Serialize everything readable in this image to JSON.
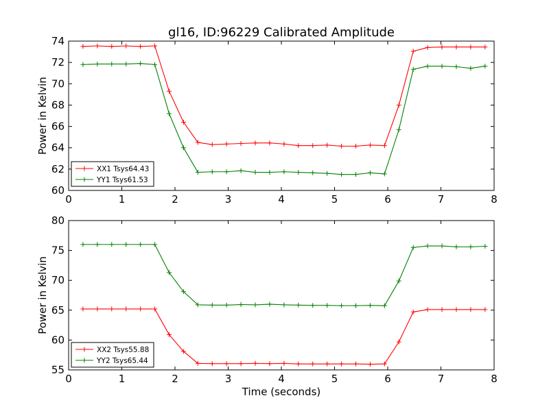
{
  "chart_data": [
    {
      "type": "line",
      "title": "gl16, ID:96229 Calibrated Amplitude",
      "xlabel": "",
      "ylabel": "Power in Kelvin",
      "xlim": [
        0,
        8
      ],
      "ylim": [
        60,
        74
      ],
      "xticks": [
        0,
        1,
        2,
        3,
        4,
        5,
        6,
        7,
        8
      ],
      "yticks": [
        60,
        62,
        64,
        66,
        68,
        70,
        72,
        74
      ],
      "xtick_labels": [
        "0",
        "1",
        "2",
        "3",
        "4",
        "5",
        "6",
        "7",
        "8"
      ],
      "ytick_labels": [
        "60",
        "62",
        "64",
        "66",
        "68",
        "70",
        "72",
        "74"
      ],
      "legend_position": "bottom-left",
      "grid": false,
      "x": [
        0.27,
        0.54,
        0.81,
        1.08,
        1.35,
        1.62,
        1.89,
        2.16,
        2.43,
        2.7,
        2.97,
        3.24,
        3.51,
        3.78,
        4.05,
        4.32,
        4.59,
        4.86,
        5.13,
        5.4,
        5.67,
        5.94,
        6.21,
        6.48,
        6.75,
        7.02,
        7.29,
        7.56,
        7.83
      ],
      "series": [
        {
          "name": "XX1 Tsys64.43",
          "color": "#ff0000",
          "values": [
            73.5,
            73.55,
            73.5,
            73.55,
            73.5,
            73.55,
            69.3,
            66.4,
            64.5,
            64.3,
            64.35,
            64.4,
            64.45,
            64.45,
            64.35,
            64.2,
            64.2,
            64.25,
            64.15,
            64.15,
            64.25,
            64.2,
            68.0,
            73.05,
            73.4,
            73.45,
            73.45,
            73.45,
            73.45
          ]
        },
        {
          "name": "YY1 Tsys61.53",
          "color": "#008000",
          "values": [
            71.8,
            71.85,
            71.85,
            71.85,
            71.9,
            71.8,
            67.2,
            64.0,
            61.7,
            61.75,
            61.75,
            61.85,
            61.7,
            61.7,
            61.75,
            61.7,
            61.65,
            61.6,
            61.5,
            61.5,
            61.65,
            61.55,
            65.7,
            71.35,
            71.65,
            71.65,
            71.6,
            71.45,
            71.65
          ]
        }
      ]
    },
    {
      "type": "line",
      "title": "",
      "xlabel": "Time (seconds)",
      "ylabel": "Power in Kelvin",
      "xlim": [
        0,
        8
      ],
      "ylim": [
        55,
        80
      ],
      "xticks": [
        0,
        1,
        2,
        3,
        4,
        5,
        6,
        7,
        8
      ],
      "yticks": [
        55,
        60,
        65,
        70,
        75,
        80
      ],
      "xtick_labels": [
        "0",
        "1",
        "2",
        "3",
        "4",
        "5",
        "6",
        "7",
        "8"
      ],
      "ytick_labels": [
        "55",
        "60",
        "65",
        "70",
        "75",
        "80"
      ],
      "legend_position": "bottom-left",
      "grid": false,
      "x": [
        0.27,
        0.54,
        0.81,
        1.08,
        1.35,
        1.62,
        1.89,
        2.16,
        2.43,
        2.7,
        2.97,
        3.24,
        3.51,
        3.78,
        4.05,
        4.32,
        4.59,
        4.86,
        5.13,
        5.4,
        5.67,
        5.94,
        6.21,
        6.48,
        6.75,
        7.02,
        7.29,
        7.56,
        7.83
      ],
      "series": [
        {
          "name": "XX2 Tsys55.88",
          "color": "#ff0000",
          "values": [
            65.2,
            65.2,
            65.2,
            65.2,
            65.2,
            65.2,
            60.9,
            58.1,
            56.1,
            56.05,
            56.05,
            56.05,
            56.1,
            56.05,
            56.1,
            56.0,
            56.0,
            56.0,
            56.0,
            56.0,
            55.95,
            56.0,
            59.7,
            64.7,
            65.1,
            65.1,
            65.1,
            65.1,
            65.1
          ]
        },
        {
          "name": "YY2 Tsys65.44",
          "color": "#008000",
          "values": [
            76.0,
            76.0,
            76.0,
            76.0,
            76.0,
            76.0,
            71.3,
            68.1,
            65.9,
            65.85,
            65.85,
            65.95,
            65.9,
            66.0,
            65.9,
            65.85,
            65.8,
            65.8,
            65.75,
            65.75,
            65.8,
            65.75,
            69.9,
            75.5,
            75.75,
            75.75,
            75.6,
            75.6,
            75.7
          ]
        }
      ]
    }
  ]
}
